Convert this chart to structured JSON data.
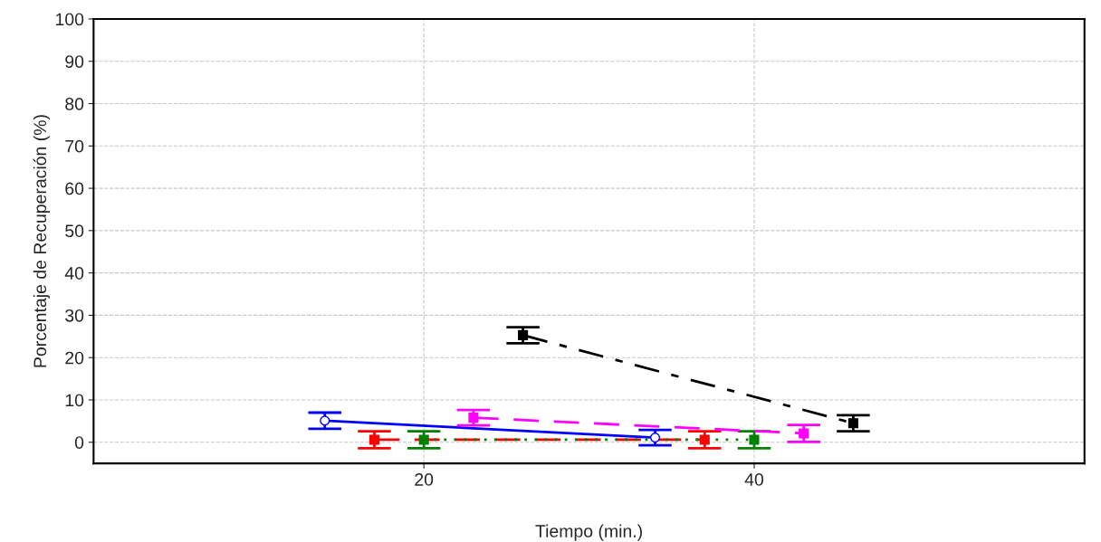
{
  "chart_data": {
    "type": "line",
    "xlabel": "Tiempo (min.)",
    "ylabel": "Porcentaje de Recuperación (%)",
    "xlim": [
      0,
      60
    ],
    "xticks": [
      20,
      40
    ],
    "ylim": [
      -5,
      100
    ],
    "yticks": [
      0,
      10,
      20,
      30,
      40,
      50,
      60,
      70,
      80,
      90,
      100
    ],
    "grid": true,
    "legend": false,
    "series": [
      {
        "color": "#0000ff",
        "x": [
          14,
          34
        ],
        "values": [
          5.1,
          1.1
        ],
        "errors": [
          1.9,
          1.8
        ],
        "marker": "circle",
        "line_style": "solid"
      },
      {
        "color": "#ff0000",
        "x": [
          17,
          37
        ],
        "values": [
          0.6,
          0.6
        ],
        "errors": [
          2,
          2
        ],
        "marker": "square",
        "line_style": "dashed"
      },
      {
        "color": "#008000",
        "x": [
          20,
          40
        ],
        "values": [
          0.6,
          0.6
        ],
        "errors": [
          2,
          2
        ],
        "marker": "square",
        "line_style": "dotted"
      },
      {
        "color": "#ff00ff",
        "x": [
          23,
          43
        ],
        "values": [
          5.8,
          2.1
        ],
        "errors": [
          1.8,
          2
        ],
        "marker": "square",
        "line_style": "dashed"
      },
      {
        "color": "#000000",
        "x": [
          26,
          46
        ],
        "values": [
          25.3,
          4.5
        ],
        "errors": [
          1.9,
          1.9
        ],
        "marker": "square",
        "line_style": "dashdot"
      }
    ]
  }
}
